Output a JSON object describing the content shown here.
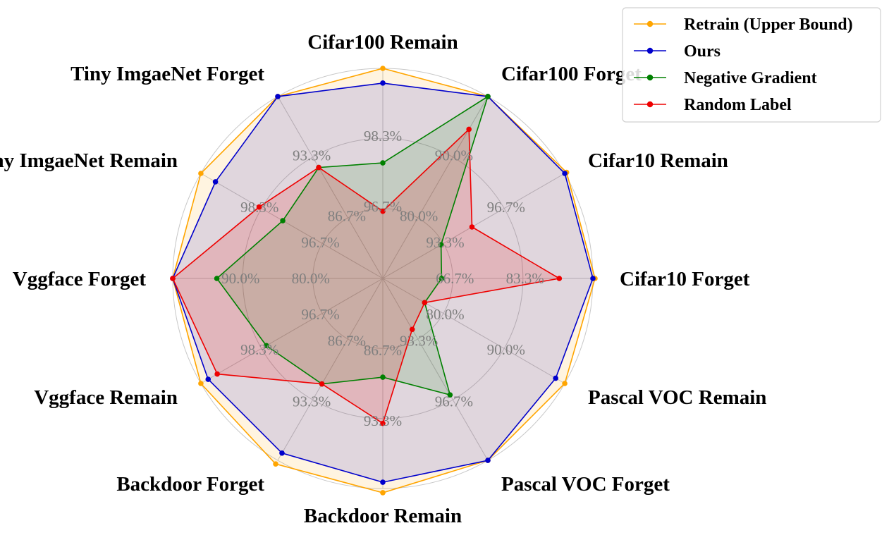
{
  "chart_data": {
    "type": "radar",
    "title": "",
    "axes": [
      {
        "label": "Cifar10 Forget",
        "ticks": [
          "66.7%",
          "83.3%"
        ]
      },
      {
        "label": "Cifar10 Remain",
        "ticks": [
          "93.3%",
          "96.7%"
        ]
      },
      {
        "label": "Cifar100 Forget",
        "ticks": [
          "80.0%",
          "90.0%"
        ]
      },
      {
        "label": "Cifar100 Remain",
        "ticks": [
          "96.7%",
          "98.3%"
        ]
      },
      {
        "label": "Tiny ImgaeNet Forget",
        "ticks": [
          "86.7%",
          "93.3%"
        ]
      },
      {
        "label": "Tiny ImgaeNet Remain",
        "ticks": [
          "96.7%",
          "98.3%"
        ]
      },
      {
        "label": "Vggface Forget",
        "ticks": [
          "80.0%",
          "90.0%"
        ]
      },
      {
        "label": "Vggface Remain",
        "ticks": [
          "96.7%",
          "98.3%"
        ]
      },
      {
        "label": "Backdoor Forget",
        "ticks": [
          "86.7%",
          "93.3%"
        ]
      },
      {
        "label": "Backdoor Remain",
        "ticks": [
          "86.7%",
          "93.3%"
        ]
      },
      {
        "label": "Pascal VOC Forget",
        "ticks": [
          "93.3%",
          "96.7%"
        ]
      },
      {
        "label": "Pascal VOC Remain",
        "ticks": [
          "80.0%",
          "90.0%"
        ]
      }
    ],
    "series": [
      {
        "name": "Retrain (Upper Bound)",
        "color": "#FFA500",
        "fill": true,
        "values": [
          1.01,
          1.01,
          1.0,
          1.0,
          1.0,
          1.0,
          1.0,
          1.0,
          1.02,
          1.02,
          1.0,
          1.0
        ]
      },
      {
        "name": "Ours",
        "color": "#0000CC",
        "fill": true,
        "values": [
          1.0,
          1.0,
          1.0,
          0.93,
          1.0,
          0.92,
          1.0,
          0.96,
          0.96,
          0.97,
          1.0,
          0.95
        ]
      },
      {
        "name": "Negative Gradient",
        "color": "#008000",
        "fill": true,
        "values": [
          0.28,
          0.32,
          1.0,
          0.55,
          0.61,
          0.55,
          0.79,
          0.64,
          0.58,
          0.47,
          0.64,
          0.23
        ]
      },
      {
        "name": "Random Label",
        "color": "#EE0000",
        "fill": true,
        "values": [
          0.84,
          0.49,
          0.82,
          0.32,
          0.61,
          0.68,
          1.0,
          0.91,
          0.58,
          0.69,
          0.28,
          0.23
        ]
      }
    ],
    "radial_range": [
      0,
      1
    ],
    "rings": [
      0.333,
      0.667,
      1.0
    ],
    "legend_position": "top-right",
    "grid": true
  }
}
